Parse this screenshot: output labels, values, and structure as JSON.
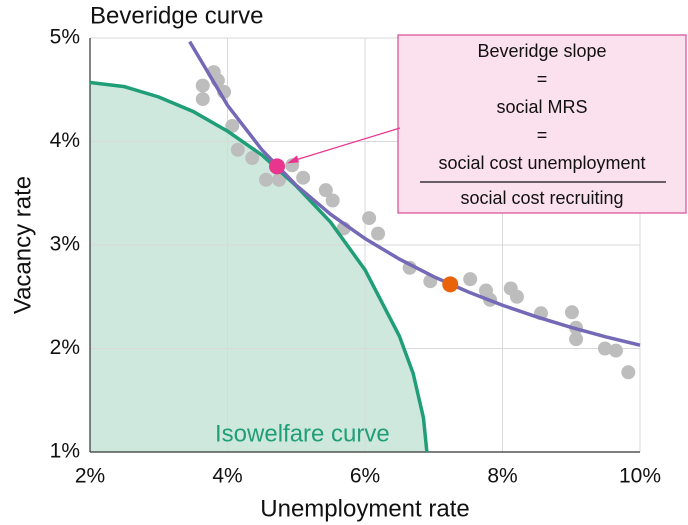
{
  "chart_data": {
    "type": "scatter",
    "xlabel": "Unemployment rate",
    "ylabel": "Vacancy rate",
    "xlim": [
      2,
      10
    ],
    "ylim": [
      1,
      5
    ],
    "xticks": [
      {
        "value": 2,
        "label": "2%"
      },
      {
        "value": 4,
        "label": "4%"
      },
      {
        "value": 6,
        "label": "6%"
      },
      {
        "value": 8,
        "label": "8%"
      },
      {
        "value": 10,
        "label": "10%"
      }
    ],
    "yticks": [
      {
        "value": 1,
        "label": "1%"
      },
      {
        "value": 2,
        "label": "2%"
      },
      {
        "value": 3,
        "label": "3%"
      },
      {
        "value": 4,
        "label": "4%"
      },
      {
        "value": 5,
        "label": "5%"
      }
    ],
    "grid": true,
    "points": {
      "color": "#bdbdbd",
      "x": [
        3.64,
        3.8,
        3.86,
        3.64,
        3.95,
        4.07,
        4.15,
        4.36,
        4.56,
        4.75,
        4.94,
        5.1,
        5.43,
        5.53,
        5.69,
        6.06,
        6.19,
        6.65,
        6.95,
        7.53,
        7.76,
        7.82,
        8.12,
        8.21,
        8.56,
        9.01,
        9.07,
        9.07,
        9.49,
        9.65,
        9.83
      ],
      "y": [
        4.54,
        4.67,
        4.59,
        4.41,
        4.48,
        4.15,
        3.92,
        3.84,
        3.63,
        3.63,
        3.77,
        3.65,
        3.53,
        3.43,
        3.16,
        3.26,
        3.11,
        2.78,
        2.65,
        2.67,
        2.56,
        2.47,
        2.58,
        2.5,
        2.34,
        2.35,
        2.2,
        2.09,
        2.0,
        1.98,
        1.77
      ]
    },
    "beveridge_curve": {
      "label": "Beveridge curve",
      "color": "#7469b6",
      "x": [
        3.45,
        4,
        4.5,
        5,
        5.5,
        6,
        6.5,
        7,
        7.5,
        8,
        8.5,
        9,
        9.5,
        10
      ],
      "y": [
        4.965,
        4.35,
        3.92,
        3.577,
        3.296,
        3.062,
        2.864,
        2.694,
        2.547,
        2.418,
        2.305,
        2.204,
        2.113,
        2.032
      ]
    },
    "isowelfare_curve": {
      "label": "Isowelfare curve",
      "color": "#1f9e77",
      "fill": "#cfe8de",
      "x": [
        2,
        2.5,
        3,
        3.5,
        4,
        4.5,
        5,
        5.5,
        6,
        6.5,
        6.7,
        6.85,
        6.9
      ],
      "y": [
        4.57,
        4.53,
        4.43,
        4.29,
        4.1,
        3.87,
        3.57,
        3.22,
        2.76,
        2.12,
        1.76,
        1.33,
        1.0
      ]
    },
    "highlights": [
      {
        "x": 4.72,
        "y": 3.76,
        "color": "#e8368f"
      },
      {
        "x": 7.24,
        "y": 2.62,
        "color": "#e8630a"
      }
    ],
    "callout": {
      "lines": [
        "Beveridge slope",
        "=",
        "social MRS",
        "=",
        "social cost unemployment",
        "social cost recruiting"
      ]
    }
  }
}
